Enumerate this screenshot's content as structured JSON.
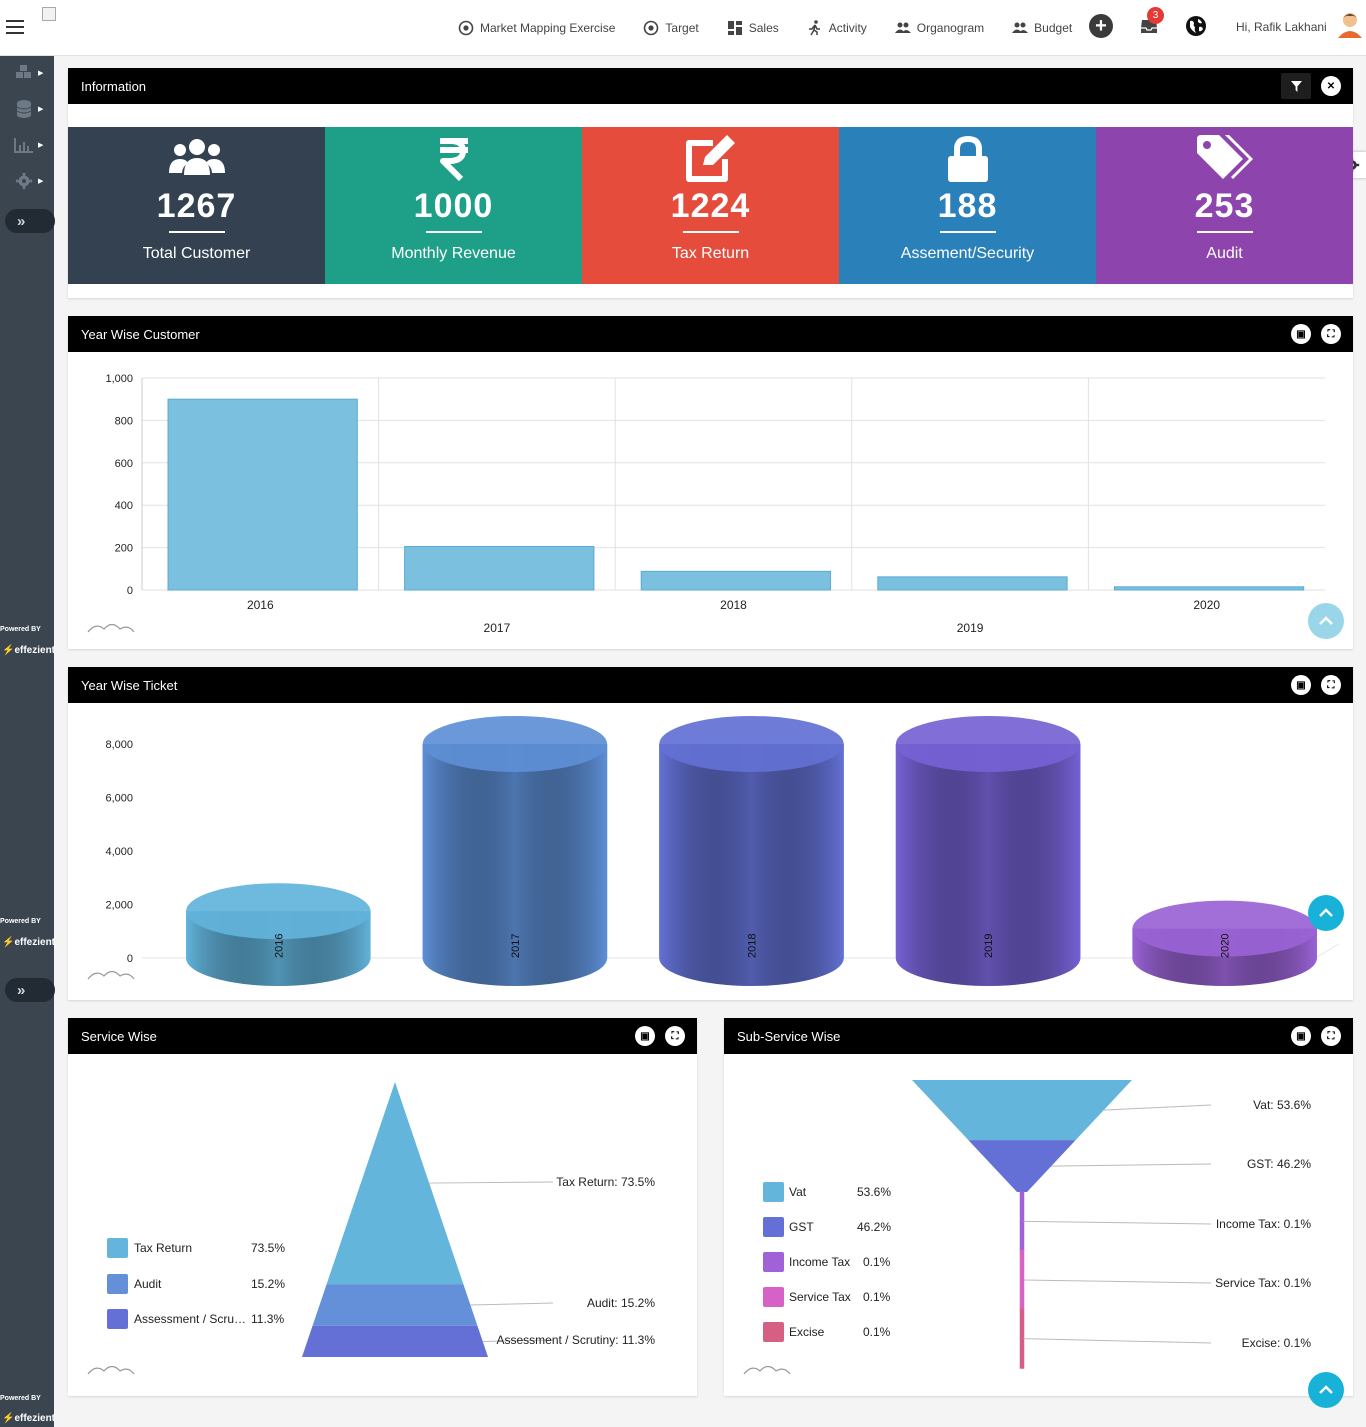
{
  "topnav": {
    "items": [
      {
        "label": "Market Mapping Exercise",
        "icon": "target-icon"
      },
      {
        "label": "Target",
        "icon": "target-icon"
      },
      {
        "label": "Sales",
        "icon": "dashboard-icon"
      },
      {
        "label": "Activity",
        "icon": "running-icon"
      },
      {
        "label": "Organogram",
        "icon": "people-icon"
      },
      {
        "label": "Budget",
        "icon": "people-icon"
      }
    ],
    "notification_count": "3",
    "greeting": "Hi, Rafik Lakhani"
  },
  "sidebar": {
    "powered_by": "Powered BY",
    "brand": "effezient"
  },
  "information": {
    "title": "Information",
    "stats": [
      {
        "value": "1267",
        "label": "Total Customer",
        "color": "#334151",
        "icon": "users-icon"
      },
      {
        "value": "1000",
        "label": "Monthly Revenue",
        "color": "#1e9f88",
        "icon": "rupee-icon"
      },
      {
        "value": "1224",
        "label": "Tax Return",
        "color": "#e64c3c",
        "icon": "edit-icon"
      },
      {
        "value": "188",
        "label": "Assement/Security",
        "color": "#2a80b9",
        "icon": "lock-icon"
      },
      {
        "value": "253",
        "label": "Audit",
        "color": "#8d44ad",
        "icon": "tag-icon"
      }
    ]
  },
  "year_customer": {
    "title": "Year Wise Customer",
    "chart_data": {
      "type": "bar",
      "categories": [
        "2016",
        "2017",
        "2018",
        "2019",
        "2020"
      ],
      "values": [
        900,
        205,
        88,
        62,
        15
      ],
      "ylim": [
        0,
        1000
      ],
      "yticks": [
        "0",
        "200",
        "400",
        "600",
        "800",
        "1,000"
      ],
      "color": "#7cc0e0",
      "grid": true
    }
  },
  "year_ticket": {
    "title": "Year Wise Ticket",
    "chart_data": {
      "type": "bar",
      "categories": [
        "2016",
        "2017",
        "2018",
        "2019",
        "2020"
      ],
      "values": [
        1750,
        8000,
        8000,
        8000,
        1100
      ],
      "ylim": [
        0,
        8000
      ],
      "yticks": [
        "0",
        "2,000",
        "4,000",
        "6,000",
        "8,000"
      ],
      "colors": [
        "#62b3db",
        "#5d8fd6",
        "#6371d4",
        "#7662d4",
        "#9a63d6"
      ]
    }
  },
  "service_wise": {
    "title": "Service Wise",
    "chart_data": {
      "type": "pyramid",
      "series": [
        {
          "name": "Tax Return",
          "value": 73.5,
          "display": "73.5%",
          "label": "Tax Return: 73.5%",
          "color": "#63b5db"
        },
        {
          "name": "Audit",
          "value": 15.2,
          "display": "15.2%",
          "label": "Audit: 15.2%",
          "color": "#6390d8"
        },
        {
          "name": "Assessment / Scru…",
          "value": 11.3,
          "display": "11.3%",
          "label": "Assessment / Scrutiny: 11.3%",
          "color": "#6570d6"
        }
      ]
    }
  },
  "sub_service_wise": {
    "title": "Sub-Service Wise",
    "chart_data": {
      "type": "funnel",
      "series": [
        {
          "name": "Vat",
          "value": 53.6,
          "display": "53.6%",
          "label": "Vat: 53.6%",
          "color": "#63b5db"
        },
        {
          "name": "GST",
          "value": 46.2,
          "display": "46.2%",
          "label": "GST: 46.2%",
          "color": "#6570d6"
        },
        {
          "name": "Income Tax",
          "value": 0.1,
          "display": "0.1%",
          "label": "Income Tax: 0.1%",
          "color": "#a062d6"
        },
        {
          "name": "Service Tax",
          "value": 0.1,
          "display": "0.1%",
          "label": "Service Tax: 0.1%",
          "color": "#d662c8"
        },
        {
          "name": "Excise",
          "value": 0.1,
          "display": "0.1%",
          "label": "Excise: 0.1%",
          "color": "#d65f84"
        }
      ]
    }
  }
}
